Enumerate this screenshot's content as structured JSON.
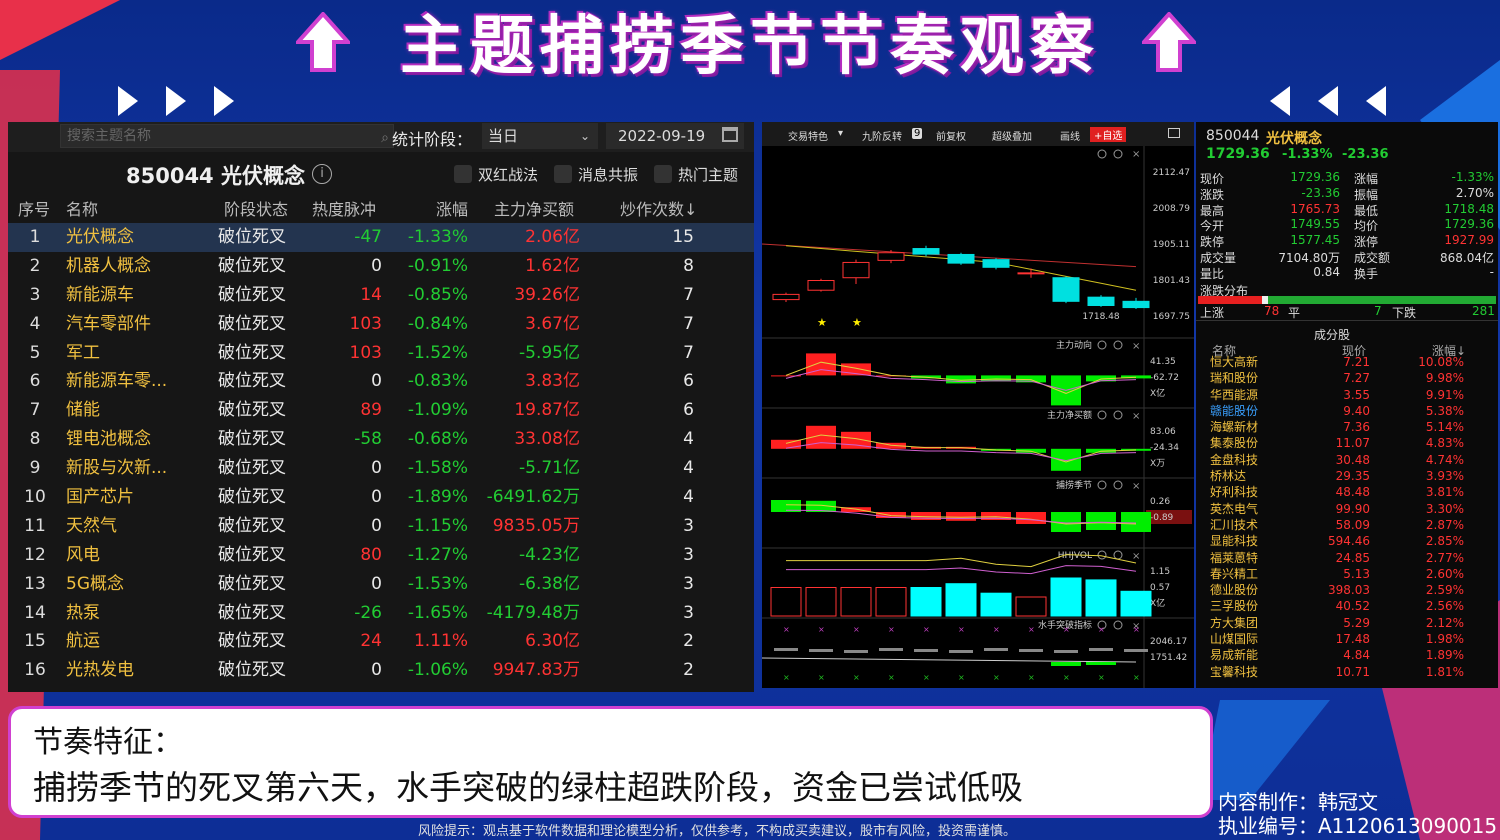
{
  "page": {
    "title": "主题捕捞季节节奏观察",
    "note_title": "节奏特征：",
    "note_text": "捕捞季节的死叉第六天，水手突破的绿柱超跌阶段，资金已尝试低吸",
    "author": "内容制作：韩冠文",
    "license": "执业编号：A1120613090015",
    "risk": "风险提示：观点基于软件数据和理论模型分析，仅供参考，不构成买卖建议，股市有风险，投资需谨慎。"
  },
  "left_panel": {
    "search_placeholder": "搜索主题名称",
    "stat_label": "统计阶段：",
    "stat_value": "当日",
    "date": "2022-09-19",
    "code_title": "850044 光伏概念",
    "info_icon": "i",
    "checkboxes": [
      "双红战法",
      "消息共振",
      "热门主题"
    ],
    "columns": [
      "序号",
      "名称",
      "阶段状态",
      "热度脉冲",
      "涨幅",
      "主力净买额",
      "炒作次数↓"
    ],
    "rows": [
      {
        "no": "1",
        "name": "光伏概念",
        "status": "破位死叉",
        "heat": "-47",
        "change": "-1.33%",
        "net": "2.06亿",
        "count": "15"
      },
      {
        "no": "2",
        "name": "机器人概念",
        "status": "破位死叉",
        "heat": "0",
        "change": "-0.91%",
        "net": "1.62亿",
        "count": "8"
      },
      {
        "no": "3",
        "name": "新能源车",
        "status": "破位死叉",
        "heat": "14",
        "change": "-0.85%",
        "net": "39.26亿",
        "count": "7"
      },
      {
        "no": "4",
        "name": "汽车零部件",
        "status": "破位死叉",
        "heat": "103",
        "change": "-0.84%",
        "net": "3.67亿",
        "count": "7"
      },
      {
        "no": "5",
        "name": "军工",
        "status": "破位死叉",
        "heat": "103",
        "change": "-1.52%",
        "net": "-5.95亿",
        "count": "7"
      },
      {
        "no": "6",
        "name": "新能源车零...",
        "status": "破位死叉",
        "heat": "0",
        "change": "-0.83%",
        "net": "3.83亿",
        "count": "6"
      },
      {
        "no": "7",
        "name": "储能",
        "status": "破位死叉",
        "heat": "89",
        "change": "-1.09%",
        "net": "19.87亿",
        "count": "6"
      },
      {
        "no": "8",
        "name": "锂电池概念",
        "status": "破位死叉",
        "heat": "-58",
        "change": "-0.68%",
        "net": "33.08亿",
        "count": "4"
      },
      {
        "no": "9",
        "name": "新股与次新...",
        "status": "破位死叉",
        "heat": "0",
        "change": "-1.58%",
        "net": "-5.71亿",
        "count": "4"
      },
      {
        "no": "10",
        "name": "国产芯片",
        "status": "破位死叉",
        "heat": "0",
        "change": "-1.89%",
        "net": "-6491.62万",
        "count": "4"
      },
      {
        "no": "11",
        "name": "天然气",
        "status": "破位死叉",
        "heat": "0",
        "change": "-1.15%",
        "net": "9835.05万",
        "count": "3"
      },
      {
        "no": "12",
        "name": "风电",
        "status": "破位死叉",
        "heat": "80",
        "change": "-1.27%",
        "net": "-4.23亿",
        "count": "3"
      },
      {
        "no": "13",
        "name": "5G概念",
        "status": "破位死叉",
        "heat": "0",
        "change": "-1.53%",
        "net": "-6.38亿",
        "count": "3"
      },
      {
        "no": "14",
        "name": "热泵",
        "status": "破位死叉",
        "heat": "-26",
        "change": "-1.65%",
        "net": "-4179.48万",
        "count": "3"
      },
      {
        "no": "15",
        "name": "航运",
        "status": "破位死叉",
        "heat": "24",
        "change": "1.11%",
        "net": "6.30亿",
        "count": "2"
      },
      {
        "no": "16",
        "name": "光热发电",
        "status": "破位死叉",
        "heat": "0",
        "change": "-1.06%",
        "net": "9947.83万",
        "count": "2"
      }
    ]
  },
  "chart": {
    "toolbar": [
      "交易特色",
      "九阶反转",
      "前复权",
      "超级叠加",
      "画线",
      "+自选"
    ],
    "toolbar_badge": "9",
    "price_axis": [
      "2112.47",
      "2008.79",
      "1905.11",
      "1801.43",
      "1697.75"
    ],
    "low_label": "1718.48",
    "panels": [
      {
        "title": "主力动向",
        "axis": [
          "41.35",
          "-62.72",
          "X亿"
        ]
      },
      {
        "title": "主力净买额",
        "axis": [
          "83.06",
          "-24.34",
          "X万"
        ]
      },
      {
        "title": "捕捞季节",
        "axis": [
          "0.26",
          "-0.89"
        ]
      },
      {
        "title": "HHJVOL",
        "axis": [
          "1.15",
          "0.57",
          "X亿"
        ]
      },
      {
        "title": "水手突破指标",
        "axis": [
          "2046.17",
          "1751.42"
        ]
      }
    ],
    "panel_icons": [
      "gear-icon",
      "help-icon",
      "close-icon"
    ],
    "candles": [
      {
        "o": 1745,
        "c": 1760,
        "h": 1765,
        "l": 1738
      },
      {
        "o": 1772,
        "c": 1800,
        "h": 1805,
        "l": 1768
      },
      {
        "o": 1808,
        "c": 1852,
        "h": 1860,
        "l": 1790
      },
      {
        "o": 1858,
        "c": 1880,
        "h": 1888,
        "l": 1850
      },
      {
        "o": 1892,
        "c": 1876,
        "h": 1900,
        "l": 1870
      },
      {
        "o": 1875,
        "c": 1850,
        "h": 1880,
        "l": 1845
      },
      {
        "o": 1860,
        "c": 1838,
        "h": 1864,
        "l": 1832
      },
      {
        "o": 1820,
        "c": 1822,
        "h": 1835,
        "l": 1808
      },
      {
        "o": 1808,
        "c": 1740,
        "h": 1812,
        "l": 1735
      },
      {
        "o": 1752,
        "c": 1728,
        "h": 1758,
        "l": 1724
      },
      {
        "o": 1740,
        "c": 1722,
        "h": 1750,
        "l": 1718
      }
    ],
    "ind1": [
      0,
      22,
      12,
      0,
      -3,
      -8,
      -6,
      -7,
      -30,
      -6,
      -3
    ],
    "ind2": [
      9,
      23,
      17,
      6,
      2,
      2,
      -2,
      -4,
      -22,
      -4,
      -2
    ],
    "ind3": [
      0.3,
      0.28,
      0.12,
      -0.15,
      -0.2,
      -0.22,
      -0.2,
      -0.3,
      -0.5,
      -0.45,
      -0.5
    ],
    "ind4": [
      0.75,
      0.75,
      0.75,
      0.75,
      0.75,
      0.85,
      0.6,
      0.5,
      1.0,
      0.95,
      0.65
    ]
  },
  "quote": {
    "code": "850044",
    "name": "光伏概念",
    "price": "1729.36",
    "pct": "-1.33%",
    "chg": "-23.36",
    "fields": [
      [
        "现价",
        "1729.36",
        "涨幅",
        "-1.33%"
      ],
      [
        "涨跌",
        "-23.36",
        "振幅",
        "2.70%"
      ],
      [
        "最高",
        "1765.73",
        "最低",
        "1718.48"
      ],
      [
        "今开",
        "1749.55",
        "均价",
        "1729.36"
      ],
      [
        "跌停",
        "1577.45",
        "涨停",
        "1927.99"
      ],
      [
        "成交量",
        "7104.80万",
        "成交额",
        "868.04亿"
      ],
      [
        "量比",
        "0.84",
        "换手",
        "-"
      ]
    ],
    "dist_title": "涨跌分布",
    "up_label": "上涨",
    "up_count": "78",
    "flat_label": "平",
    "flat_count": "7",
    "down_label": "下跌",
    "down_count": "281",
    "constituents_title": "成分股",
    "list_columns": [
      "名称",
      "现价",
      "涨幅↓"
    ],
    "stocks": [
      [
        "恒大高新",
        "7.21",
        "10.08%"
      ],
      [
        "瑞和股份",
        "7.27",
        "9.98%"
      ],
      [
        "华西能源",
        "3.55",
        "9.91%"
      ],
      [
        "赣能股份",
        "9.40",
        "5.38%"
      ],
      [
        "海螺新材",
        "7.36",
        "5.14%"
      ],
      [
        "集泰股份",
        "11.07",
        "4.83%"
      ],
      [
        "金盘科技",
        "30.48",
        "4.74%"
      ],
      [
        "桥林达",
        "29.35",
        "3.93%"
      ],
      [
        "好利科技",
        "48.48",
        "3.81%"
      ],
      [
        "英杰电气",
        "99.90",
        "3.30%"
      ],
      [
        "汇川技术",
        "58.09",
        "2.87%"
      ],
      [
        "显能科技",
        "594.46",
        "2.85%"
      ],
      [
        "福莱蒽特",
        "24.85",
        "2.77%"
      ],
      [
        "春兴精工",
        "5.13",
        "2.60%"
      ],
      [
        "德业股份",
        "398.03",
        "2.59%"
      ],
      [
        "三孚股份",
        "40.52",
        "2.56%"
      ],
      [
        "方大集团",
        "5.29",
        "2.12%"
      ],
      [
        "山煤国际",
        "17.48",
        "1.98%"
      ],
      [
        "易成新能",
        "4.84",
        "1.89%"
      ],
      [
        "宝馨科技",
        "10.71",
        "1.81%"
      ]
    ]
  },
  "colors": {
    "up": "#ff3333",
    "down": "#22cc33",
    "accent": "#d040d0",
    "name_yellow": "#f0c040"
  }
}
